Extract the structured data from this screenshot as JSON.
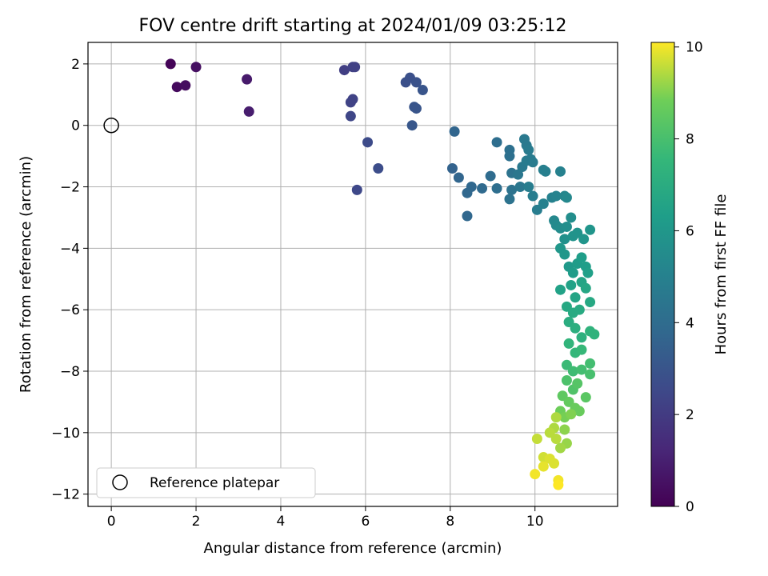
{
  "chart_data": {
    "type": "scatter",
    "title": "FOV centre drift starting at 2024/01/09 03:25:12",
    "xlabel": "Angular distance from reference (arcmin)",
    "ylabel": "Rotation from reference (arcmin)",
    "xlim": [
      -0.55,
      11.95
    ],
    "ylim": [
      -12.4,
      2.7
    ],
    "xticks": [
      0,
      2,
      4,
      6,
      8,
      10
    ],
    "yticks": [
      2,
      0,
      -2,
      -4,
      -6,
      -8,
      -10,
      -12
    ],
    "xtick_labels": [
      "0",
      "2",
      "4",
      "6",
      "8",
      "10"
    ],
    "ytick_labels": [
      "2",
      "0",
      "−2",
      "−4",
      "−6",
      "−8",
      "−10",
      "−12"
    ],
    "grid": true,
    "legend": {
      "placement": "lower-left",
      "entries": [
        {
          "label": "Reference platepar",
          "marker": "open-circle"
        }
      ]
    },
    "reference_point": {
      "x": 0,
      "y": 0
    },
    "colorbar": {
      "label": "Hours from first FF file",
      "colormap": "viridis",
      "range": [
        0,
        10.1
      ],
      "ticks": [
        0,
        2,
        4,
        6,
        8,
        10
      ],
      "tick_labels": [
        "0",
        "2",
        "4",
        "6",
        "8",
        "10"
      ]
    },
    "points": [
      {
        "x": 1.4,
        "y": 2.0,
        "c": 0.1
      },
      {
        "x": 1.55,
        "y": 1.25,
        "c": 0.3
      },
      {
        "x": 1.75,
        "y": 1.3,
        "c": 0.4
      },
      {
        "x": 2.0,
        "y": 1.9,
        "c": 0.5
      },
      {
        "x": 3.2,
        "y": 1.5,
        "c": 0.8
      },
      {
        "x": 3.25,
        "y": 0.45,
        "c": 0.9
      },
      {
        "x": 5.5,
        "y": 1.8,
        "c": 2.1
      },
      {
        "x": 5.7,
        "y": 1.9,
        "c": 2.2
      },
      {
        "x": 5.75,
        "y": 1.9,
        "c": 2.2
      },
      {
        "x": 5.65,
        "y": 0.75,
        "c": 2.3
      },
      {
        "x": 5.7,
        "y": 0.85,
        "c": 2.3
      },
      {
        "x": 5.65,
        "y": 0.3,
        "c": 2.4
      },
      {
        "x": 6.05,
        "y": -0.55,
        "c": 2.6
      },
      {
        "x": 6.3,
        "y": -1.4,
        "c": 2.7
      },
      {
        "x": 5.8,
        "y": -2.1,
        "c": 2.5
      },
      {
        "x": 6.95,
        "y": 1.4,
        "c": 2.8
      },
      {
        "x": 7.05,
        "y": 1.55,
        "c": 2.8
      },
      {
        "x": 7.2,
        "y": 1.4,
        "c": 2.9
      },
      {
        "x": 7.35,
        "y": 1.15,
        "c": 3.0
      },
      {
        "x": 7.15,
        "y": 0.6,
        "c": 3.0
      },
      {
        "x": 7.2,
        "y": 0.55,
        "c": 3.0
      },
      {
        "x": 7.1,
        "y": 0.0,
        "c": 3.1
      },
      {
        "x": 8.1,
        "y": -0.2,
        "c": 3.7
      },
      {
        "x": 8.05,
        "y": -1.4,
        "c": 3.6
      },
      {
        "x": 8.2,
        "y": -1.7,
        "c": 3.7
      },
      {
        "x": 8.4,
        "y": -2.2,
        "c": 3.8
      },
      {
        "x": 8.5,
        "y": -2.0,
        "c": 3.8
      },
      {
        "x": 8.4,
        "y": -2.95,
        "c": 3.8
      },
      {
        "x": 8.75,
        "y": -2.05,
        "c": 3.9
      },
      {
        "x": 8.95,
        "y": -1.65,
        "c": 4.0
      },
      {
        "x": 9.1,
        "y": -0.55,
        "c": 4.1
      },
      {
        "x": 9.1,
        "y": -2.05,
        "c": 4.1
      },
      {
        "x": 9.4,
        "y": -0.8,
        "c": 4.2
      },
      {
        "x": 9.4,
        "y": -1.0,
        "c": 4.2
      },
      {
        "x": 9.45,
        "y": -1.55,
        "c": 4.3
      },
      {
        "x": 9.45,
        "y": -2.1,
        "c": 4.3
      },
      {
        "x": 9.4,
        "y": -2.4,
        "c": 4.3
      },
      {
        "x": 9.6,
        "y": -1.6,
        "c": 4.5
      },
      {
        "x": 9.65,
        "y": -2.0,
        "c": 4.5
      },
      {
        "x": 9.7,
        "y": -1.35,
        "c": 4.6
      },
      {
        "x": 9.75,
        "y": -0.45,
        "c": 4.6
      },
      {
        "x": 9.8,
        "y": -0.65,
        "c": 4.6
      },
      {
        "x": 9.85,
        "y": -0.8,
        "c": 4.7
      },
      {
        "x": 9.8,
        "y": -1.15,
        "c": 4.7
      },
      {
        "x": 9.9,
        "y": -1.1,
        "c": 4.7
      },
      {
        "x": 9.95,
        "y": -1.2,
        "c": 4.7
      },
      {
        "x": 9.85,
        "y": -2.0,
        "c": 4.8
      },
      {
        "x": 9.95,
        "y": -2.3,
        "c": 4.8
      },
      {
        "x": 10.05,
        "y": -2.75,
        "c": 4.8
      },
      {
        "x": 10.2,
        "y": -1.45,
        "c": 4.9
      },
      {
        "x": 10.25,
        "y": -1.5,
        "c": 4.9
      },
      {
        "x": 10.2,
        "y": -2.55,
        "c": 5.0
      },
      {
        "x": 10.4,
        "y": -2.35,
        "c": 5.0
      },
      {
        "x": 10.5,
        "y": -2.3,
        "c": 5.1
      },
      {
        "x": 10.6,
        "y": -1.5,
        "c": 5.0
      },
      {
        "x": 10.7,
        "y": -2.3,
        "c": 5.2
      },
      {
        "x": 10.75,
        "y": -2.35,
        "c": 5.3
      },
      {
        "x": 10.45,
        "y": -3.1,
        "c": 5.3
      },
      {
        "x": 10.5,
        "y": -3.25,
        "c": 5.4
      },
      {
        "x": 10.6,
        "y": -3.35,
        "c": 5.5
      },
      {
        "x": 10.75,
        "y": -3.3,
        "c": 5.6
      },
      {
        "x": 10.85,
        "y": -3.0,
        "c": 5.6
      },
      {
        "x": 10.7,
        "y": -3.7,
        "c": 5.7
      },
      {
        "x": 10.9,
        "y": -3.6,
        "c": 5.8
      },
      {
        "x": 11.0,
        "y": -3.5,
        "c": 5.8
      },
      {
        "x": 11.15,
        "y": -3.7,
        "c": 5.9
      },
      {
        "x": 11.3,
        "y": -3.4,
        "c": 5.9
      },
      {
        "x": 10.6,
        "y": -4.0,
        "c": 6.0
      },
      {
        "x": 10.7,
        "y": -4.2,
        "c": 6.0
      },
      {
        "x": 10.8,
        "y": -4.6,
        "c": 6.1
      },
      {
        "x": 10.9,
        "y": -4.8,
        "c": 6.2
      },
      {
        "x": 11.0,
        "y": -4.5,
        "c": 6.2
      },
      {
        "x": 11.1,
        "y": -4.3,
        "c": 6.3
      },
      {
        "x": 11.2,
        "y": -4.6,
        "c": 6.3
      },
      {
        "x": 11.25,
        "y": -4.8,
        "c": 6.4
      },
      {
        "x": 10.6,
        "y": -5.35,
        "c": 6.5
      },
      {
        "x": 10.85,
        "y": -5.2,
        "c": 6.5
      },
      {
        "x": 10.95,
        "y": -5.6,
        "c": 6.6
      },
      {
        "x": 11.1,
        "y": -5.1,
        "c": 6.6
      },
      {
        "x": 11.2,
        "y": -5.3,
        "c": 6.7
      },
      {
        "x": 11.3,
        "y": -5.75,
        "c": 6.8
      },
      {
        "x": 10.75,
        "y": -5.9,
        "c": 6.8
      },
      {
        "x": 10.9,
        "y": -6.1,
        "c": 6.9
      },
      {
        "x": 11.05,
        "y": -6.0,
        "c": 6.9
      },
      {
        "x": 10.8,
        "y": -6.4,
        "c": 7.0
      },
      {
        "x": 10.95,
        "y": -6.6,
        "c": 7.1
      },
      {
        "x": 11.1,
        "y": -6.9,
        "c": 7.2
      },
      {
        "x": 11.3,
        "y": -6.7,
        "c": 7.3
      },
      {
        "x": 11.4,
        "y": -6.8,
        "c": 7.3
      },
      {
        "x": 10.8,
        "y": -7.1,
        "c": 7.4
      },
      {
        "x": 10.95,
        "y": -7.4,
        "c": 7.5
      },
      {
        "x": 11.1,
        "y": -7.3,
        "c": 7.6
      },
      {
        "x": 10.75,
        "y": -7.8,
        "c": 7.7
      },
      {
        "x": 10.9,
        "y": -8.0,
        "c": 7.8
      },
      {
        "x": 11.1,
        "y": -7.95,
        "c": 7.9
      },
      {
        "x": 11.3,
        "y": -7.75,
        "c": 7.9
      },
      {
        "x": 11.3,
        "y": -8.1,
        "c": 8.0
      },
      {
        "x": 10.75,
        "y": -8.3,
        "c": 8.1
      },
      {
        "x": 10.9,
        "y": -8.6,
        "c": 8.2
      },
      {
        "x": 11.0,
        "y": -8.4,
        "c": 8.3
      },
      {
        "x": 11.2,
        "y": -8.85,
        "c": 8.4
      },
      {
        "x": 10.65,
        "y": -8.8,
        "c": 8.5
      },
      {
        "x": 10.8,
        "y": -9.0,
        "c": 8.6
      },
      {
        "x": 10.95,
        "y": -9.2,
        "c": 8.7
      },
      {
        "x": 11.05,
        "y": -9.3,
        "c": 8.7
      },
      {
        "x": 10.6,
        "y": -9.3,
        "c": 8.8
      },
      {
        "x": 10.7,
        "y": -9.5,
        "c": 8.9
      },
      {
        "x": 10.85,
        "y": -9.4,
        "c": 9.0
      },
      {
        "x": 10.7,
        "y": -9.9,
        "c": 9.1
      },
      {
        "x": 10.75,
        "y": -10.35,
        "c": 9.2
      },
      {
        "x": 10.6,
        "y": -10.5,
        "c": 9.3
      },
      {
        "x": 10.5,
        "y": -9.5,
        "c": 9.4
      },
      {
        "x": 10.45,
        "y": -9.85,
        "c": 9.4
      },
      {
        "x": 10.35,
        "y": -10.0,
        "c": 9.5
      },
      {
        "x": 10.5,
        "y": -10.2,
        "c": 9.5
      },
      {
        "x": 10.05,
        "y": -10.2,
        "c": 9.6
      },
      {
        "x": 10.2,
        "y": -10.8,
        "c": 9.7
      },
      {
        "x": 10.35,
        "y": -10.85,
        "c": 9.8
      },
      {
        "x": 10.45,
        "y": -11.0,
        "c": 9.8
      },
      {
        "x": 10.2,
        "y": -11.1,
        "c": 9.9
      },
      {
        "x": 10.0,
        "y": -11.35,
        "c": 10.0
      },
      {
        "x": 10.55,
        "y": -11.55,
        "c": 10.0
      },
      {
        "x": 10.55,
        "y": -11.7,
        "c": 10.1
      }
    ]
  }
}
